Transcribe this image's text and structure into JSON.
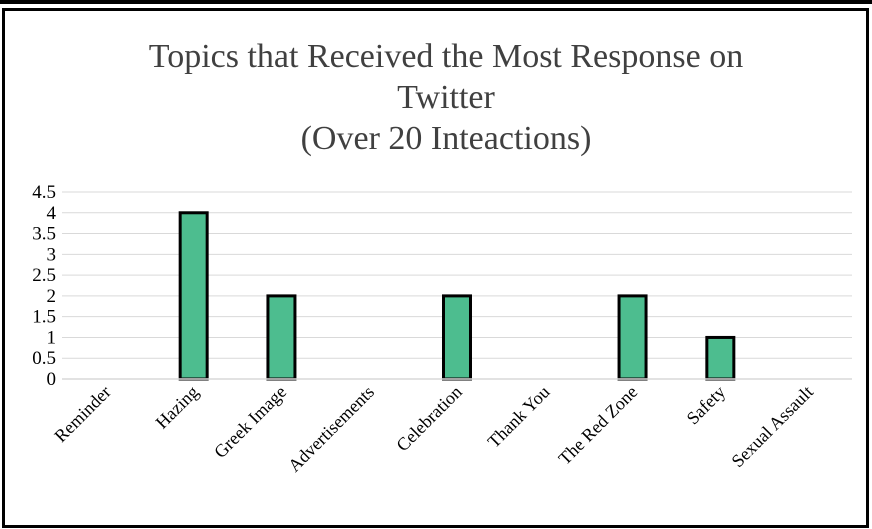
{
  "chart_data": {
    "type": "bar",
    "title_lines": [
      "Topics that Received the Most Response on",
      "Twitter",
      "(Over 20 Inteactions)"
    ],
    "categories": [
      "Reminder",
      "Hazing",
      "Greek Image",
      "Advertisements",
      "Celebration",
      "Thank You",
      "The Red Zone",
      "Safety",
      "Sexual Assault"
    ],
    "values": [
      0,
      4,
      2,
      0,
      2,
      0,
      2,
      1,
      0
    ],
    "yticks": [
      "0",
      "0.5",
      "1",
      "1.5",
      "2",
      "2.5",
      "3",
      "3.5",
      "4",
      "4.5"
    ],
    "ylim": [
      0,
      4.5
    ],
    "xlabel": "",
    "ylabel": "",
    "grid": true,
    "legend": "none",
    "colors": {
      "bar_fill": "#4dbd8f",
      "bar_stroke": "#000000",
      "grid": "#d9d9d9",
      "title": "#404040"
    }
  }
}
